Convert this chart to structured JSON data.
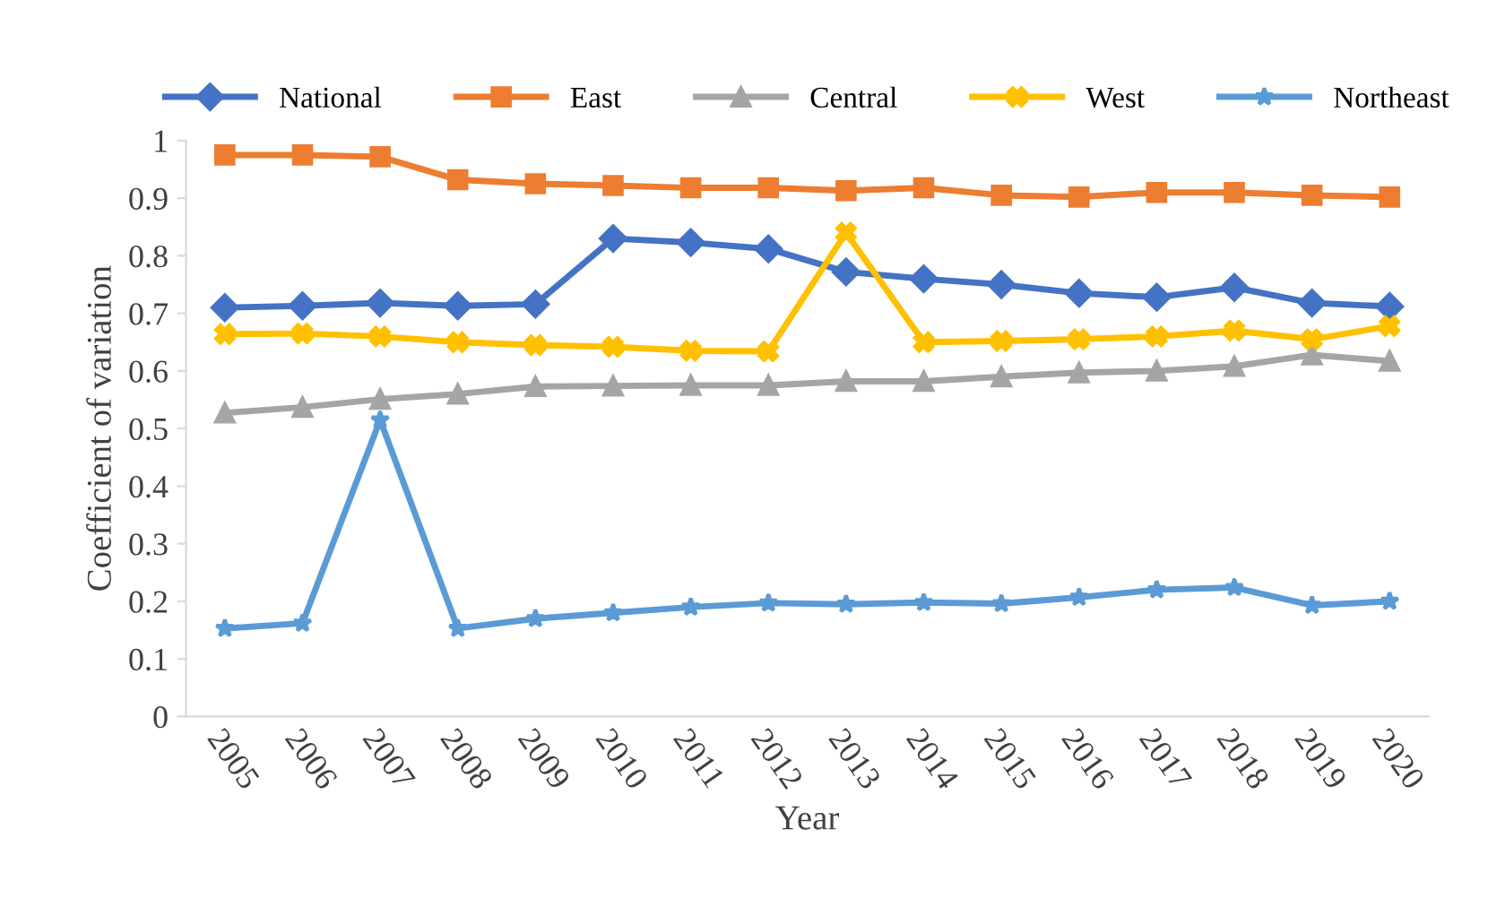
{
  "chart_data": {
    "type": "line",
    "xlabel": "Year",
    "ylabel": "Coefficient of variation",
    "categories": [
      "2005",
      "2006",
      "2007",
      "2008",
      "2009",
      "2010",
      "2011",
      "2012",
      "2013",
      "2014",
      "2015",
      "2016",
      "2017",
      "2018",
      "2019",
      "2020"
    ],
    "series": [
      {
        "name": "National",
        "color": "#4472c4",
        "marker": "diamond",
        "values": [
          0.71,
          0.713,
          0.718,
          0.713,
          0.716,
          0.83,
          0.823,
          0.812,
          0.772,
          0.76,
          0.75,
          0.735,
          0.728,
          0.745,
          0.718,
          0.712
        ]
      },
      {
        "name": "East",
        "color": "#ed7d31",
        "marker": "square",
        "values": [
          0.975,
          0.975,
          0.972,
          0.932,
          0.925,
          0.922,
          0.918,
          0.918,
          0.913,
          0.918,
          0.905,
          0.902,
          0.91,
          0.91,
          0.905,
          0.902
        ]
      },
      {
        "name": "Central",
        "color": "#a5a5a5",
        "marker": "triangle",
        "values": [
          0.527,
          0.537,
          0.551,
          0.56,
          0.573,
          0.574,
          0.575,
          0.575,
          0.582,
          0.582,
          0.59,
          0.597,
          0.6,
          0.608,
          0.628,
          0.617
        ]
      },
      {
        "name": "West",
        "color": "#ffc000",
        "marker": "cross",
        "values": [
          0.664,
          0.665,
          0.66,
          0.65,
          0.645,
          0.642,
          0.635,
          0.634,
          0.84,
          0.65,
          0.652,
          0.655,
          0.66,
          0.67,
          0.655,
          0.678
        ]
      },
      {
        "name": "Northeast",
        "color": "#5b9bd5",
        "marker": "star",
        "values": [
          0.153,
          0.162,
          0.515,
          0.153,
          0.17,
          0.18,
          0.19,
          0.197,
          0.195,
          0.198,
          0.196,
          0.207,
          0.22,
          0.224,
          0.193,
          0.2
        ]
      }
    ],
    "ylim": [
      0,
      1
    ],
    "yticks": [
      0,
      0.1,
      0.2,
      0.3,
      0.4,
      0.5,
      0.6,
      0.7,
      0.8,
      0.9,
      1
    ],
    "grid": false,
    "legend": "top",
    "line_style": "solid"
  }
}
